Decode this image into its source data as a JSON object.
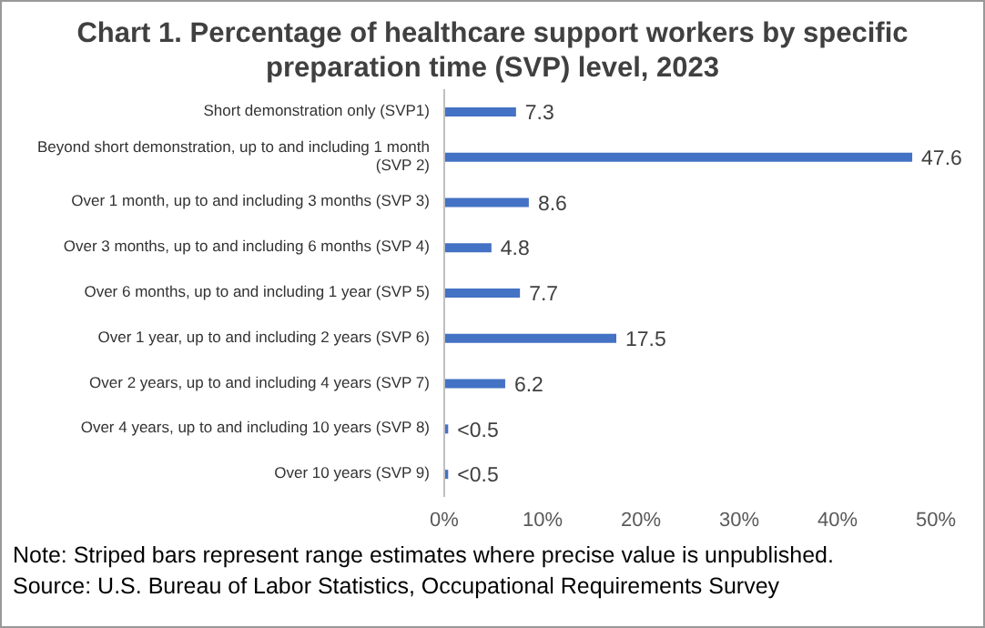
{
  "chart_data": {
    "type": "bar",
    "orientation": "horizontal",
    "title": "Chart 1. Percentage of healthcare support workers by specific preparation time (SVP) level, 2023",
    "categories": [
      "Short demonstration only (SVP1)",
      "Beyond short demonstration, up to and including 1 month (SVP 2)",
      "Over 1 month, up to and including 3 months (SVP 3)",
      "Over 3 months, up to and including 6 months (SVP 4)",
      "Over 6 months, up to and including 1 year (SVP 5)",
      "Over 1 year, up to and including 2 years (SVP 6)",
      "Over 2 years, up to and including 4 years (SVP 7)",
      "Over 4 years, up to and including 10 years (SVP 8)",
      "Over 10 years (SVP 9)"
    ],
    "values": [
      7.3,
      47.6,
      8.6,
      4.8,
      7.7,
      17.5,
      6.2,
      0.4,
      0.4
    ],
    "value_labels": [
      "7.3",
      "47.6",
      "8.6",
      "4.8",
      "7.7",
      "17.5",
      "6.2",
      "<0.5",
      "<0.5"
    ],
    "color": "#4472c4",
    "xlim": [
      0,
      50
    ],
    "xticks": [
      {
        "value": 0,
        "label": "0%"
      },
      {
        "value": 10,
        "label": "10%"
      },
      {
        "value": 20,
        "label": "20%"
      },
      {
        "value": 30,
        "label": "30%"
      },
      {
        "value": 40,
        "label": "40%"
      },
      {
        "value": 50,
        "label": "50%"
      }
    ],
    "grid": false,
    "annotations": [
      "Note: Striped bars represent range estimates where precise value is unpublished.",
      "Source: U.S. Bureau of Labor Statistics, Occupational Requirements Survey"
    ]
  }
}
